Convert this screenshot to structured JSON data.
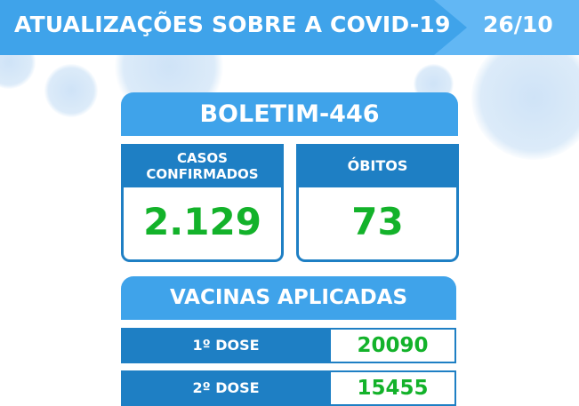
{
  "header": {
    "title": "ATUALIZAÇÕES SOBRE A COVID-19",
    "date": "26/10"
  },
  "bulletin": {
    "title": "BOLETIM-446"
  },
  "stats": [
    {
      "label_line1": "CASOS",
      "label_line2": "CONFIRMADOS",
      "value": "2.129"
    },
    {
      "label": "ÓBITOS",
      "value": "73"
    }
  ],
  "vaccines": {
    "title": "VACINAS APLICADAS",
    "rows": [
      {
        "label": "1º DOSE",
        "value": "20090"
      },
      {
        "label": "2º DOSE",
        "value": "15455"
      }
    ]
  },
  "colors": {
    "header": "#3fa3ea",
    "header_light": "#62b7f4",
    "card_header": "#1e7fc4",
    "value": "#13b22a"
  }
}
